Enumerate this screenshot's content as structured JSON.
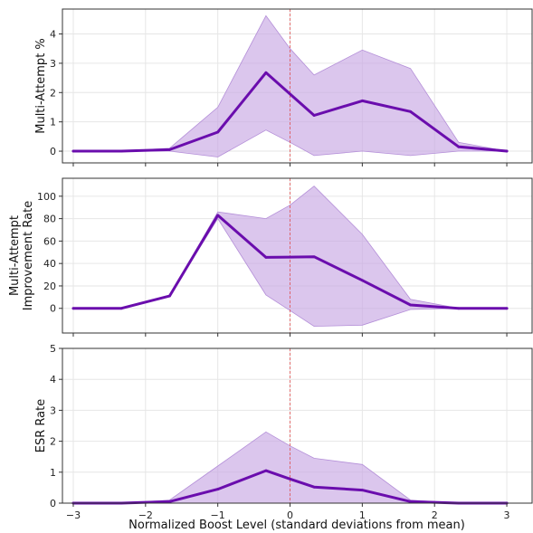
{
  "chart_data": {
    "type": "line",
    "xlabel": "Normalized Boost Level (standard deviations from mean)",
    "x": [
      -3,
      -2.333,
      -1.667,
      -1,
      -0.333,
      0.333,
      1,
      1.667,
      2.333,
      3
    ],
    "xlim": [
      -3.15,
      3.35
    ],
    "xticks": [
      -3,
      -2,
      -1,
      0,
      1,
      2,
      3
    ],
    "xtick_labels": [
      "−3",
      "−2",
      "−1",
      "0",
      "1",
      "2",
      "3"
    ],
    "vertical_line_x": 0,
    "grid": true,
    "colors": {
      "line": "#6a0dad",
      "band": "#c8a8e4",
      "band_edge": "#b48fd8",
      "vline": "#e05050"
    },
    "panels": [
      {
        "ylabel": [
          "Multi-Attempt %"
        ],
        "ylim": [
          -0.4,
          4.85
        ],
        "yticks": [
          0,
          1,
          2,
          3,
          4
        ],
        "mean": [
          0,
          0,
          0.05,
          0.65,
          2.68,
          1.22,
          1.72,
          1.35,
          0.15,
          0
        ],
        "upper": [
          0,
          0,
          0.1,
          1.5,
          4.62,
          2.6,
          3.45,
          2.82,
          0.3,
          0
        ],
        "lower": [
          0,
          0,
          0,
          -0.2,
          0.72,
          -0.15,
          0,
          -0.15,
          0,
          0
        ],
        "break_x": 0,
        "break_mean": 1.95,
        "break_upper": 3.5,
        "break_lower": 0.3
      },
      {
        "ylabel": [
          "Multi-Attempt",
          "Improvement Rate"
        ],
        "ylim": [
          -22,
          116
        ],
        "yticks": [
          0,
          20,
          40,
          60,
          80,
          100
        ],
        "mean": [
          0,
          0,
          11,
          83,
          45.5,
          46,
          25,
          3,
          0,
          0
        ],
        "upper": [
          0,
          0,
          11,
          86,
          80,
          109,
          66,
          8,
          0,
          0
        ],
        "lower": [
          0,
          0,
          11,
          80,
          12,
          -16,
          -15,
          -1,
          0,
          0
        ],
        "break_x": 0,
        "break_mean": 45.7,
        "break_upper": 92,
        "break_lower": -2
      },
      {
        "ylabel": [
          "ESR Rate"
        ],
        "ylim": [
          0,
          5
        ],
        "yticks": [
          0,
          1,
          2,
          3,
          4,
          5
        ],
        "mean": [
          0,
          0,
          0.05,
          0.45,
          1.05,
          0.52,
          0.42,
          0.05,
          0,
          0
        ],
        "upper": [
          0,
          0,
          0.1,
          1.2,
          2.3,
          1.45,
          1.25,
          0.1,
          0,
          0
        ],
        "lower": [
          0,
          0,
          0,
          0,
          0,
          0,
          0,
          0,
          0,
          0
        ],
        "break_x": 0,
        "break_mean": 0.78,
        "break_upper": 1.85,
        "break_lower": 0
      }
    ]
  }
}
